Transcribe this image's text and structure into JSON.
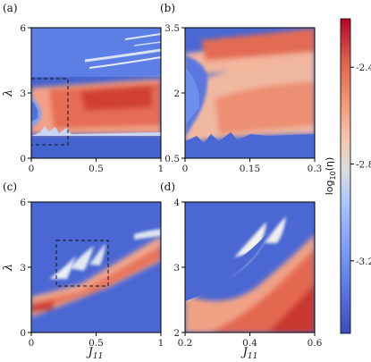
{
  "figure": {
    "colorbar": {
      "label": "log10(η)",
      "label_parts": [
        "log",
        "10",
        "(η)"
      ],
      "ticks": [
        "-2.4",
        "-2.8",
        "-3.2"
      ],
      "colors": [
        "#3b4cc0",
        "#7396f5",
        "#b1cbfc",
        "#dcdddd",
        "#f5c4ac",
        "#f08b6e",
        "#d0473d",
        "#b40426"
      ]
    }
  },
  "chart_data": [
    {
      "id": "a",
      "type": "heatmap",
      "panel_label": "(a)",
      "xlabel": "",
      "ylabel": "λ",
      "xlim": [
        0,
        1
      ],
      "ylim": [
        0,
        6
      ],
      "xticks": [
        "0",
        "0.5",
        "1"
      ],
      "xtick_values": [
        0,
        0.5,
        1
      ],
      "yticks": [
        "0",
        "3",
        "6"
      ],
      "ytick_values": [
        0,
        3,
        6
      ],
      "inset_box": {
        "x": [
          0,
          0.3
        ],
        "y": [
          0.5,
          3.5
        ]
      },
      "high_region": "0 < J11 < 1, 1.2 < λ < 3.5; thin streaks near λ = 4.4 to 5.2",
      "value_range": [
        -3.4,
        -2.2
      ]
    },
    {
      "id": "b",
      "type": "heatmap",
      "panel_label": "(b)",
      "xlabel": "",
      "ylabel": "",
      "xlim": [
        0,
        0.3
      ],
      "ylim": [
        0.5,
        3.5
      ],
      "xticks": [
        "0",
        "0.15",
        "0.3"
      ],
      "xtick_values": [
        0,
        0.15,
        0.3
      ],
      "yticks": [
        "0.5",
        "2",
        "3.5"
      ],
      "ytick_values": [
        0.5,
        2,
        3.5
      ],
      "value_range": [
        -3.4,
        -2.2
      ]
    },
    {
      "id": "c",
      "type": "heatmap",
      "panel_label": "(c)",
      "xlabel": "J11",
      "ylabel": "λ",
      "xlim": [
        0,
        1
      ],
      "ylim": [
        0,
        6
      ],
      "xticks": [
        "0",
        "0.5",
        "1"
      ],
      "xtick_values": [
        0,
        0.5,
        1
      ],
      "yticks": [
        "0",
        "3",
        "6"
      ],
      "ytick_values": [
        0,
        3,
        6
      ],
      "inset_box": {
        "x": [
          0.2,
          0.6
        ],
        "y": [
          2,
          4
        ]
      },
      "high_region": "diagonal band from (0, 1) to (1, 4) with finger-like lobes",
      "value_range": [
        -3.4,
        -2.2
      ]
    },
    {
      "id": "d",
      "type": "heatmap",
      "panel_label": "(d)",
      "xlabel": "J11",
      "ylabel": "",
      "xlim": [
        0.2,
        0.6
      ],
      "ylim": [
        2,
        4
      ],
      "xticks": [
        "0.2",
        "0.4",
        "0.6"
      ],
      "xtick_values": [
        0.2,
        0.4,
        0.6
      ],
      "yticks": [
        "2",
        "3",
        "4"
      ],
      "ytick_values": [
        2,
        3,
        4
      ],
      "value_range": [
        -3.4,
        -2.2
      ]
    }
  ]
}
